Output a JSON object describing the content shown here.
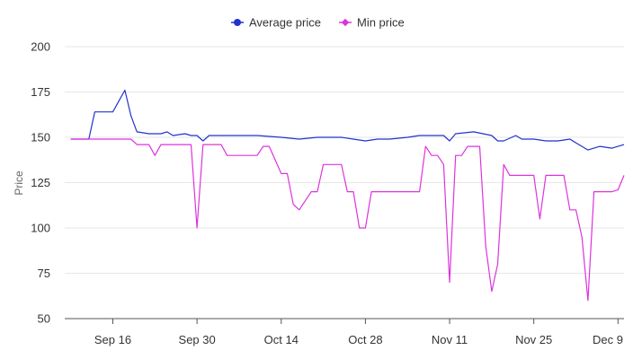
{
  "chart_data": {
    "type": "line",
    "title": "",
    "xlabel": "",
    "ylabel": "Price",
    "ylim": [
      50,
      200
    ],
    "yticks": [
      50,
      75,
      100,
      125,
      150,
      175,
      200
    ],
    "xlim": [
      "2024-09-08",
      "2024-12-10"
    ],
    "xticks": [
      {
        "label": "Sep 16",
        "date": "2024-09-16"
      },
      {
        "label": "Sep 30",
        "date": "2024-09-30"
      },
      {
        "label": "Oct 14",
        "date": "2024-10-14"
      },
      {
        "label": "Oct 28",
        "date": "2024-10-28"
      },
      {
        "label": "Nov 11",
        "date": "2024-11-11"
      },
      {
        "label": "Nov 25",
        "date": "2024-11-25"
      },
      {
        "label": "Dec 9",
        "date": "2024-12-09"
      }
    ],
    "grid": true,
    "legend": "top-center",
    "series": [
      {
        "name": "Average price",
        "color": "#2233cc",
        "points": [
          [
            "2024-09-09",
            149
          ],
          [
            "2024-09-12",
            149
          ],
          [
            "2024-09-13",
            164
          ],
          [
            "2024-09-16",
            164
          ],
          [
            "2024-09-17",
            170
          ],
          [
            "2024-09-18",
            176
          ],
          [
            "2024-09-19",
            162
          ],
          [
            "2024-09-20",
            153
          ],
          [
            "2024-09-22",
            152
          ],
          [
            "2024-09-24",
            152
          ],
          [
            "2024-09-25",
            153
          ],
          [
            "2024-09-26",
            151
          ],
          [
            "2024-09-28",
            152
          ],
          [
            "2024-09-29",
            151
          ],
          [
            "2024-09-30",
            151
          ],
          [
            "2024-10-01",
            148
          ],
          [
            "2024-10-02",
            151
          ],
          [
            "2024-10-05",
            151
          ],
          [
            "2024-10-10",
            151
          ],
          [
            "2024-10-14",
            150
          ],
          [
            "2024-10-17",
            149
          ],
          [
            "2024-10-20",
            150
          ],
          [
            "2024-10-24",
            150
          ],
          [
            "2024-10-26",
            149
          ],
          [
            "2024-10-28",
            148
          ],
          [
            "2024-10-30",
            149
          ],
          [
            "2024-11-01",
            149
          ],
          [
            "2024-11-04",
            150
          ],
          [
            "2024-11-06",
            151
          ],
          [
            "2024-11-10",
            151
          ],
          [
            "2024-11-11",
            148
          ],
          [
            "2024-11-12",
            152
          ],
          [
            "2024-11-15",
            153
          ],
          [
            "2024-11-18",
            151
          ],
          [
            "2024-11-19",
            148
          ],
          [
            "2024-11-20",
            148
          ],
          [
            "2024-11-22",
            151
          ],
          [
            "2024-11-23",
            149
          ],
          [
            "2024-11-25",
            149
          ],
          [
            "2024-11-27",
            148
          ],
          [
            "2024-11-29",
            148
          ],
          [
            "2024-12-01",
            149
          ],
          [
            "2024-12-02",
            147
          ],
          [
            "2024-12-03",
            145
          ],
          [
            "2024-12-04",
            143
          ],
          [
            "2024-12-06",
            145
          ],
          [
            "2024-12-08",
            144
          ],
          [
            "2024-12-10",
            146
          ]
        ]
      },
      {
        "name": "Min price",
        "color": "#dd33dd",
        "points": [
          [
            "2024-09-09",
            149
          ],
          [
            "2024-09-19",
            149
          ],
          [
            "2024-09-20",
            146
          ],
          [
            "2024-09-22",
            146
          ],
          [
            "2024-09-23",
            140
          ],
          [
            "2024-09-24",
            146
          ],
          [
            "2024-09-29",
            146
          ],
          [
            "2024-09-30",
            100
          ],
          [
            "2024-10-01",
            146
          ],
          [
            "2024-10-04",
            146
          ],
          [
            "2024-10-05",
            140
          ],
          [
            "2024-10-10",
            140
          ],
          [
            "2024-10-11",
            145
          ],
          [
            "2024-10-12",
            145
          ],
          [
            "2024-10-14",
            130
          ],
          [
            "2024-10-15",
            130
          ],
          [
            "2024-10-16",
            113
          ],
          [
            "2024-10-17",
            110
          ],
          [
            "2024-10-19",
            120
          ],
          [
            "2024-10-20",
            120
          ],
          [
            "2024-10-21",
            135
          ],
          [
            "2024-10-24",
            135
          ],
          [
            "2024-10-25",
            120
          ],
          [
            "2024-10-26",
            120
          ],
          [
            "2024-10-27",
            100
          ],
          [
            "2024-10-28",
            100
          ],
          [
            "2024-10-29",
            120
          ],
          [
            "2024-11-06",
            120
          ],
          [
            "2024-11-07",
            145
          ],
          [
            "2024-11-08",
            140
          ],
          [
            "2024-11-09",
            140
          ],
          [
            "2024-11-10",
            135
          ],
          [
            "2024-11-11",
            70
          ],
          [
            "2024-11-12",
            140
          ],
          [
            "2024-11-13",
            140
          ],
          [
            "2024-11-14",
            145
          ],
          [
            "2024-11-16",
            145
          ],
          [
            "2024-11-17",
            90
          ],
          [
            "2024-11-18",
            65
          ],
          [
            "2024-11-19",
            80
          ],
          [
            "2024-11-20",
            135
          ],
          [
            "2024-11-21",
            129
          ],
          [
            "2024-11-25",
            129
          ],
          [
            "2024-11-26",
            105
          ],
          [
            "2024-11-27",
            129
          ],
          [
            "2024-11-30",
            129
          ],
          [
            "2024-12-01",
            110
          ],
          [
            "2024-12-02",
            110
          ],
          [
            "2024-12-03",
            95
          ],
          [
            "2024-12-04",
            60
          ],
          [
            "2024-12-05",
            120
          ],
          [
            "2024-12-08",
            120
          ],
          [
            "2024-12-09",
            121
          ],
          [
            "2024-12-10",
            129
          ]
        ]
      }
    ]
  }
}
